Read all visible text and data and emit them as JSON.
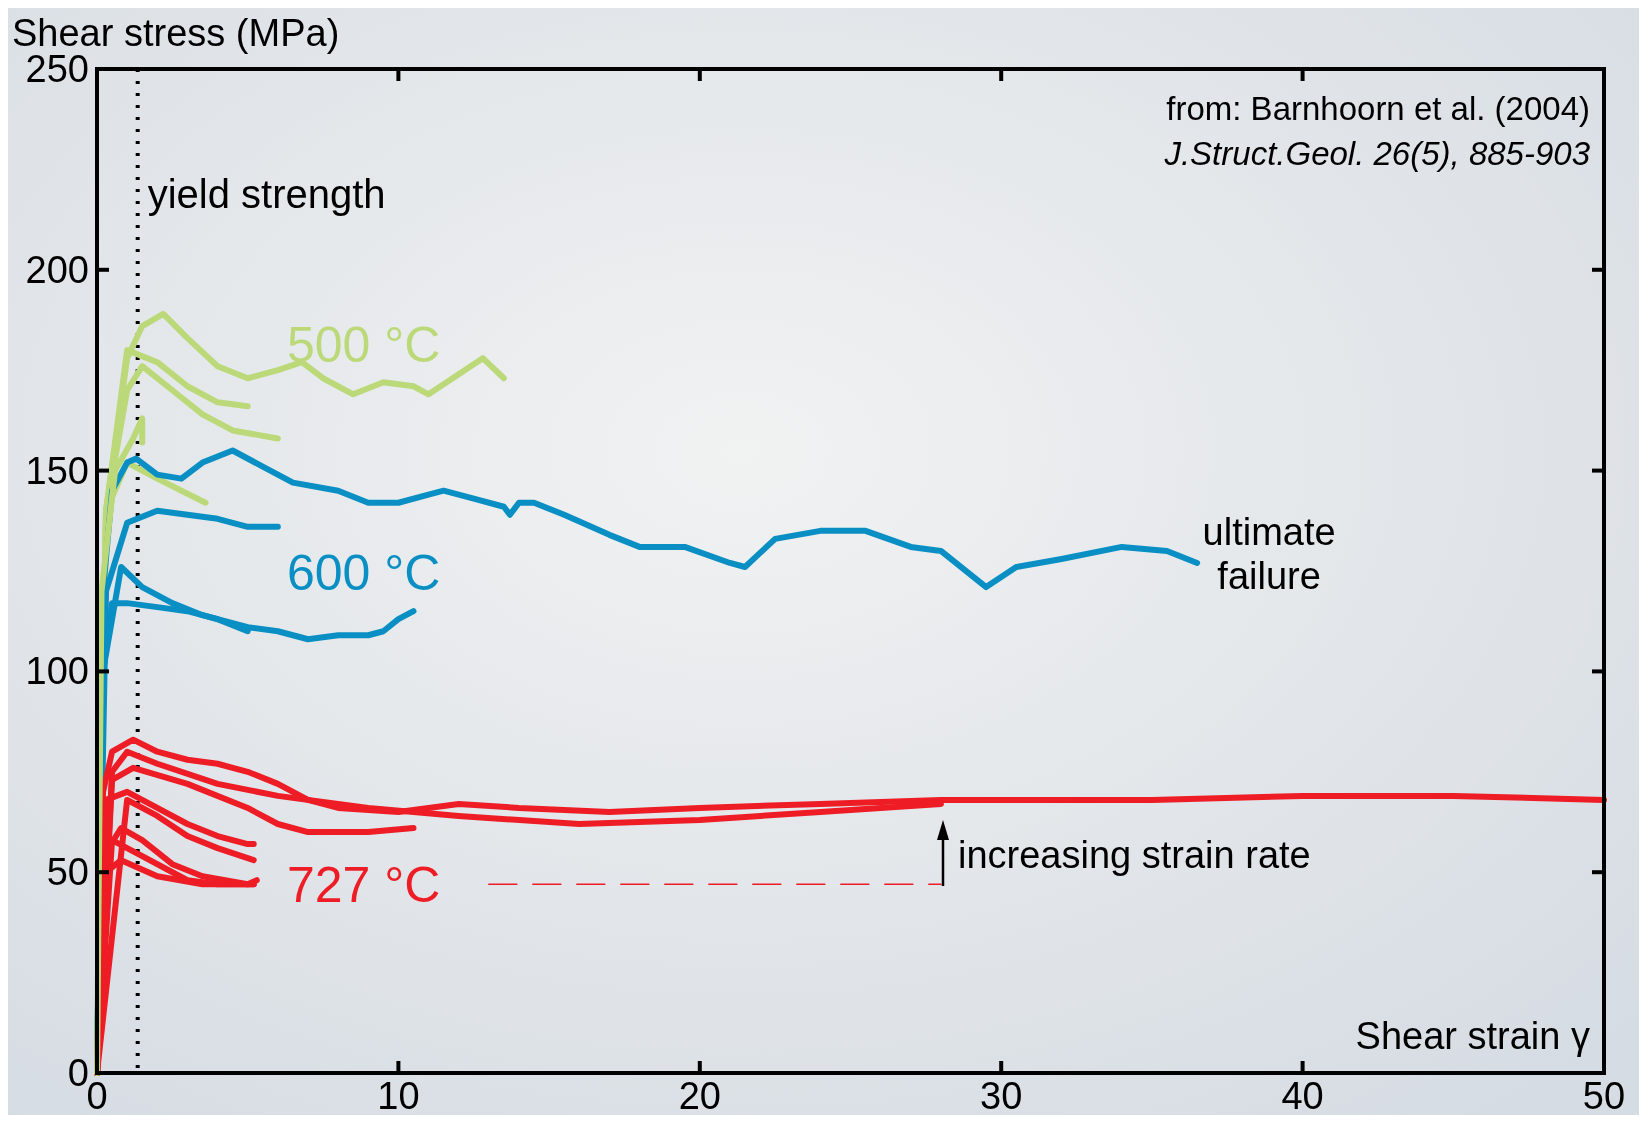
{
  "chart_data": {
    "type": "line",
    "xlabel": "Shear strain γ",
    "ylabel": "Shear stress (MPa)",
    "xlim": [
      0,
      50
    ],
    "ylim": [
      0,
      250
    ],
    "xticks": [
      0,
      10,
      20,
      30,
      40,
      50
    ],
    "yticks": [
      0,
      50,
      100,
      150,
      200,
      250
    ],
    "grid": false,
    "marker": "none",
    "line_style": "solid",
    "ref_lines": [
      {
        "axis": "x",
        "value": 1.35,
        "label": "yield strength",
        "color": "#000000",
        "line_style": "dotted"
      }
    ],
    "annotations": [
      "from: Barnhoorn et al. (2004)",
      "J.Struct.Geol. 26(5), 885-903",
      {
        "text": "ultimate failure",
        "x": 36.5,
        "y": 127
      },
      "increasing strain rate"
    ],
    "series": [
      {
        "name": "500 °C",
        "color": "#bcd97a",
        "x": [
          0,
          0.3,
          1,
          1.5,
          2.2,
          3,
          4,
          5,
          6,
          6.8,
          7.5,
          8.5,
          9.5,
          10.5,
          11,
          12,
          12.8,
          13.5
        ],
        "values": [
          0,
          140,
          178,
          186,
          189,
          183,
          176,
          173,
          175,
          177,
          173,
          169,
          172,
          171,
          169,
          174,
          178,
          173
        ]
      },
      {
        "color": "#bcd97a",
        "x": [
          0,
          0.3,
          1,
          2,
          3,
          4,
          5
        ],
        "values": [
          0,
          140,
          180,
          177,
          171,
          167,
          166
        ]
      },
      {
        "color": "#bcd97a",
        "x": [
          0,
          0.3,
          1,
          1.5,
          2.5,
          3.5,
          4.5,
          6
        ],
        "values": [
          0,
          140,
          170,
          176,
          170,
          164,
          160,
          158
        ]
      },
      {
        "color": "#bcd97a",
        "x": [
          0,
          0.3,
          1,
          2,
          3.6
        ],
        "values": [
          0,
          140,
          152,
          148,
          142
        ]
      },
      {
        "name": "600 °C",
        "color": "#0a8fc4",
        "x": [
          0,
          0.2,
          0.5,
          1,
          1.3,
          2,
          2.8,
          3.5,
          4.5,
          5.5,
          6.5,
          8,
          9,
          10,
          11,
          11.5,
          12.5,
          13.5,
          13.7,
          14,
          14.5,
          15.5,
          17,
          18,
          19.5,
          21,
          21.5,
          22.5,
          24,
          25.5,
          27,
          28,
          29.5,
          30.5,
          32,
          34,
          35.5,
          36.5
        ],
        "values": [
          0,
          120,
          145,
          152,
          153,
          149,
          148,
          152,
          155,
          151,
          147,
          145,
          142,
          142,
          144,
          145,
          143,
          141,
          139,
          142,
          142,
          139,
          134,
          131,
          131,
          127,
          126,
          133,
          135,
          135,
          131,
          130,
          121,
          126,
          128,
          131,
          130,
          127
        ]
      },
      {
        "color": "#0a8fc4",
        "x": [
          0,
          0.3,
          1,
          2,
          3,
          4,
          5,
          6
        ],
        "values": [
          0,
          120,
          137,
          140,
          139,
          138,
          136,
          136
        ]
      },
      {
        "color": "#0a8fc4",
        "x": [
          0,
          0.2,
          0.8,
          1.5,
          2.5,
          3.5,
          5,
          6,
          7,
          8,
          9,
          9.5,
          10,
          10.5
        ],
        "values": [
          0,
          100,
          126,
          121,
          117,
          114,
          111,
          110,
          108,
          109,
          109,
          110,
          113,
          115
        ]
      },
      {
        "color": "#0a8fc4",
        "x": [
          0,
          0.2,
          0.5,
          1,
          2,
          3,
          4,
          5
        ],
        "values": [
          0,
          100,
          117,
          117,
          116,
          115,
          113,
          110
        ]
      },
      {
        "name": "727 °C",
        "color": "#ee1c25",
        "x": [
          0,
          0.2,
          0.5,
          1.2,
          2,
          3,
          4,
          5,
          6,
          7,
          8,
          10,
          12,
          14,
          17,
          20,
          24,
          28,
          35,
          40,
          45,
          50
        ],
        "values": [
          0,
          70,
          80,
          83,
          80,
          78,
          77,
          75,
          72,
          68,
          66,
          65,
          67,
          66,
          65,
          66,
          67,
          68,
          68,
          69,
          69,
          68
        ]
      },
      {
        "color": "#ee1c25",
        "x": [
          0,
          0.5,
          1,
          2,
          4,
          6,
          9,
          12,
          16,
          20,
          24,
          28
        ],
        "values": [
          0,
          75,
          80,
          77,
          72,
          69,
          66,
          64,
          62,
          63,
          65,
          67
        ]
      },
      {
        "color": "#ee1c25",
        "x": [
          0,
          0.5,
          1.2,
          3,
          5,
          6,
          7,
          9,
          10.5
        ],
        "values": [
          0,
          73,
          76,
          72,
          66,
          62,
          60,
          60,
          61
        ]
      },
      {
        "color": "#ee1c25",
        "x": [
          0,
          0.3,
          1,
          2,
          3,
          4,
          5,
          5.2
        ],
        "values": [
          0,
          68,
          70,
          66,
          62,
          59,
          57,
          57
        ]
      },
      {
        "color": "#ee1c25",
        "x": [
          0,
          1,
          2,
          3,
          4,
          5.2
        ],
        "values": [
          0,
          68,
          64,
          59,
          56,
          53
        ]
      },
      {
        "color": "#ee1c25",
        "x": [
          0,
          0.3,
          0.8,
          1.5,
          2.5,
          3.5,
          5,
          5.3
        ],
        "values": [
          0,
          55,
          61,
          58,
          52,
          49,
          47,
          48
        ]
      },
      {
        "color": "#ee1c25",
        "x": [
          0,
          0.5,
          1.5,
          3,
          4,
          5.2
        ],
        "values": [
          0,
          58,
          54,
          48,
          47,
          47
        ]
      },
      {
        "color": "#ee1c25",
        "x": [
          0,
          0.3,
          0.8,
          2,
          3.5,
          5.2
        ],
        "values": [
          0,
          50,
          53,
          49,
          47,
          47
        ]
      },
      {
        "color": "#ee1c25",
        "line_style": "dashed",
        "x": [
          13,
          28
        ],
        "values": [
          47,
          47
        ]
      },
      {
        "color": "#bcd97a",
        "x": [
          0,
          0.15,
          0.6,
          1.2,
          1.5,
          1.5
        ],
        "values": [
          0,
          120,
          150,
          158,
          163,
          157
        ]
      }
    ]
  }
}
